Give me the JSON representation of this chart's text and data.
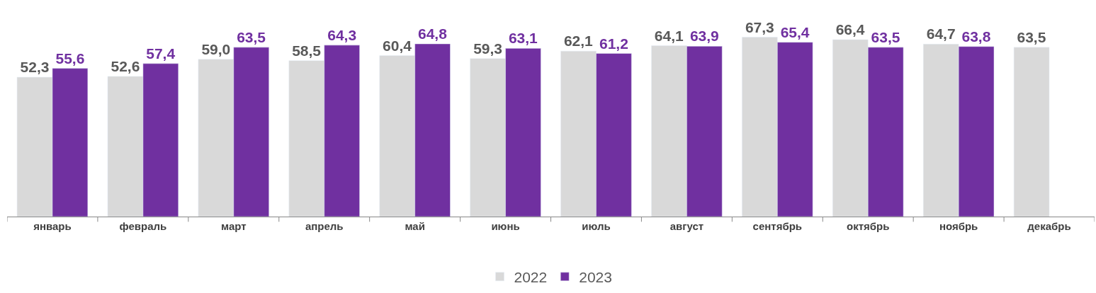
{
  "chart_data": {
    "type": "bar",
    "categories": [
      "январь",
      "февраль",
      "март",
      "апрель",
      "май",
      "июнь",
      "июль",
      "август",
      "сентябрь",
      "октябрь",
      "ноябрь",
      "декабрь"
    ],
    "series": [
      {
        "name": "2022",
        "color": "#d9d9d9",
        "values": [
          52.3,
          52.6,
          59.0,
          58.5,
          60.4,
          59.3,
          62.1,
          64.1,
          67.3,
          66.4,
          64.7,
          63.5
        ],
        "value_labels": [
          "52,3",
          "52,6",
          "59,0",
          "58,5",
          "60,4",
          "59,3",
          "62,1",
          "64,1",
          "67,3",
          "66,4",
          "64,7",
          "63,5"
        ]
      },
      {
        "name": "2023",
        "color": "#7030a0",
        "values": [
          55.6,
          57.4,
          63.5,
          64.3,
          64.8,
          63.1,
          61.2,
          63.9,
          65.4,
          63.5,
          63.8,
          null
        ],
        "value_labels": [
          "55,6",
          "57,4",
          "63,5",
          "64,3",
          "64,8",
          "63,1",
          "61,2",
          "63,9",
          "65,4",
          "63,5",
          "63,8",
          null
        ]
      }
    ],
    "legend": "bottom"
  }
}
